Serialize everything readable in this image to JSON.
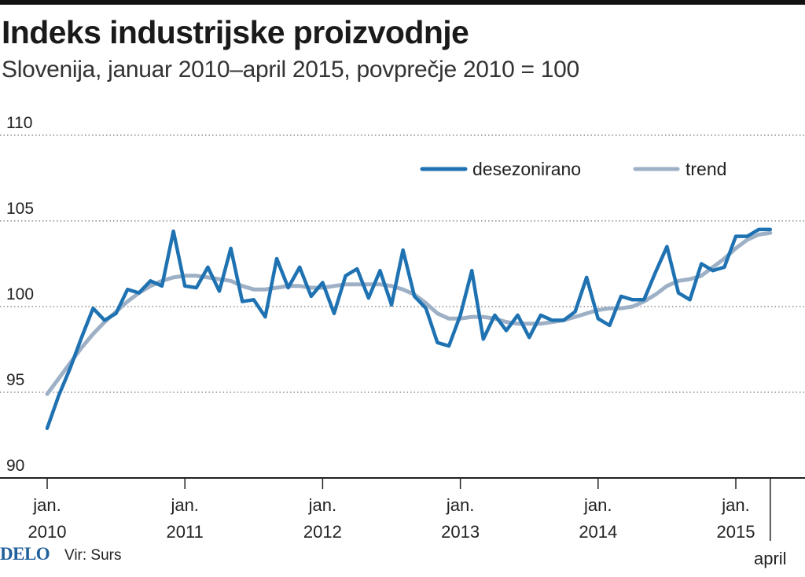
{
  "header": {
    "title": "Indeks industrijske proizvodnje",
    "subtitle": "Slovenija, januar 2010–april 2015, povprečje 2010 = 100"
  },
  "footer": {
    "logo": "DELO",
    "source": "Vir: Surs"
  },
  "colors": {
    "desezonirano": "#1f72b2",
    "trend": "#9db0c6",
    "grid": "#555555",
    "logo": "#1f5f9a"
  },
  "chart_data": {
    "type": "line",
    "title": "Indeks industrijske proizvodnje",
    "ylim": [
      90,
      110
    ],
    "y_ticks": [
      "90",
      "95",
      "100",
      "105",
      "110"
    ],
    "x_ticks": [
      {
        "line1": "jan.",
        "line2": "2010"
      },
      {
        "line1": "jan.",
        "line2": "2011"
      },
      {
        "line1": "jan.",
        "line2": "2012"
      },
      {
        "line1": "jan.",
        "line2": "2013"
      },
      {
        "line1": "jan.",
        "line2": "2014"
      },
      {
        "line1": "jan.",
        "line2": "2015"
      },
      {
        "line1": "",
        "line2": "april"
      }
    ],
    "grid": "horizontal dotted",
    "legend_position": "top-right",
    "x": [
      "2010-01",
      "2010-02",
      "2010-03",
      "2010-04",
      "2010-05",
      "2010-06",
      "2010-07",
      "2010-08",
      "2010-09",
      "2010-10",
      "2010-11",
      "2010-12",
      "2011-01",
      "2011-02",
      "2011-03",
      "2011-04",
      "2011-05",
      "2011-06",
      "2011-07",
      "2011-08",
      "2011-09",
      "2011-10",
      "2011-11",
      "2011-12",
      "2012-01",
      "2012-02",
      "2012-03",
      "2012-04",
      "2012-05",
      "2012-06",
      "2012-07",
      "2012-08",
      "2012-09",
      "2012-10",
      "2012-11",
      "2012-12",
      "2013-01",
      "2013-02",
      "2013-03",
      "2013-04",
      "2013-05",
      "2013-06",
      "2013-07",
      "2013-08",
      "2013-09",
      "2013-10",
      "2013-11",
      "2013-12",
      "2014-01",
      "2014-02",
      "2014-03",
      "2014-04",
      "2014-05",
      "2014-06",
      "2014-07",
      "2014-08",
      "2014-09",
      "2014-10",
      "2014-11",
      "2014-12",
      "2015-01",
      "2015-02",
      "2015-03",
      "2015-04"
    ],
    "series": [
      {
        "name": "desezonirano",
        "values": [
          92.9,
          94.8,
          96.4,
          98.2,
          99.9,
          99.2,
          99.6,
          101.0,
          100.8,
          101.5,
          101.2,
          104.4,
          101.2,
          101.1,
          102.3,
          100.9,
          103.4,
          100.3,
          100.4,
          99.4,
          102.8,
          101.1,
          102.3,
          100.6,
          101.4,
          99.6,
          101.8,
          102.2,
          100.5,
          102.1,
          100.1,
          103.3,
          100.6,
          99.9,
          97.9,
          97.7,
          99.5,
          102.1,
          98.1,
          99.5,
          98.6,
          99.5,
          98.2,
          99.5,
          99.2,
          99.2,
          99.7,
          101.7,
          99.3,
          98.9,
          100.6,
          100.4,
          100.4,
          102.0,
          103.5,
          100.8,
          100.4,
          102.5,
          102.1,
          102.3,
          104.1,
          104.1,
          104.5,
          104.5
        ]
      },
      {
        "name": "trend",
        "values": [
          94.9,
          95.8,
          96.7,
          97.6,
          98.4,
          99.1,
          99.7,
          100.3,
          100.8,
          101.2,
          101.5,
          101.7,
          101.8,
          101.8,
          101.7,
          101.6,
          101.5,
          101.2,
          101.0,
          101.0,
          101.1,
          101.2,
          101.2,
          101.1,
          101.1,
          101.2,
          101.3,
          101.3,
          101.3,
          101.3,
          101.2,
          101.0,
          100.7,
          100.2,
          99.6,
          99.3,
          99.3,
          99.4,
          99.4,
          99.3,
          99.1,
          99.0,
          99.0,
          99.0,
          99.1,
          99.2,
          99.4,
          99.6,
          99.8,
          99.9,
          99.9,
          100.0,
          100.3,
          100.7,
          101.2,
          101.5,
          101.6,
          101.8,
          102.3,
          102.8,
          103.4,
          103.9,
          104.2,
          104.3
        ]
      }
    ]
  }
}
